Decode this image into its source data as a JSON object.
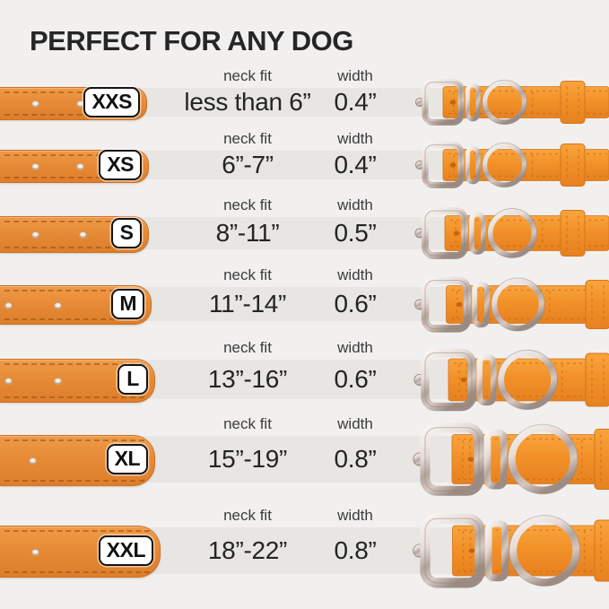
{
  "title": "PERFECT FOR ANY DOG",
  "columns": {
    "neck_fit": "neck fit",
    "width": "width"
  },
  "sizes": [
    {
      "size": "XXS",
      "neck_fit": "less than 6”",
      "width": "0.4”"
    },
    {
      "size": "XS",
      "neck_fit": "6”-7”",
      "width": "0.4”"
    },
    {
      "size": "S",
      "neck_fit": "8”-11”",
      "width": "0.5”"
    },
    {
      "size": "M",
      "neck_fit": "11”-14”",
      "width": "0.6”"
    },
    {
      "size": "L",
      "neck_fit": "13”-16”",
      "width": "0.6”"
    },
    {
      "size": "XL",
      "neck_fit": "15”-19”",
      "width": "0.8”"
    },
    {
      "size": "XXL",
      "neck_fit": "18”-22”",
      "width": "0.8”"
    }
  ],
  "colors": {
    "background": "#F1F0EE",
    "row_band": "#E8E6E3",
    "collar_orange": "#E8893A",
    "collar_orange_bright": "#F29128",
    "metal_silver": "#D8CCC6",
    "label_box_bg": "#FFFFFF",
    "label_box_border": "#141414",
    "text_dark": "#282828"
  }
}
